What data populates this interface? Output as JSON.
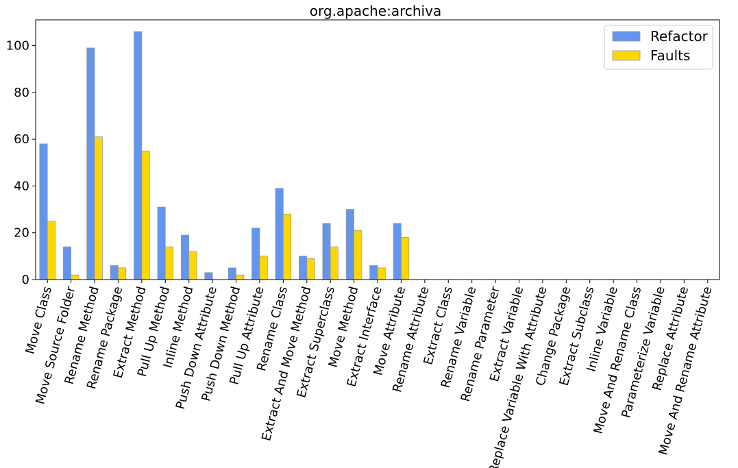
{
  "chart_data": {
    "type": "bar",
    "title": "org.apache:archiva",
    "xlabel": "",
    "ylabel": "",
    "ylim": [
      0,
      111
    ],
    "yticks": [
      0,
      20,
      40,
      60,
      80,
      100
    ],
    "grid": false,
    "legend_position": "top-right",
    "categories": [
      "Move Class",
      "Move Source Folder",
      "Rename Method",
      "Rename Package",
      "Extract Method",
      "Pull Up Method",
      "Inline Method",
      "Push Down Attribute",
      "Push Down Method",
      "Pull Up Attribute",
      "Rename Class",
      "Extract And Move Method",
      "Extract Superclass",
      "Move Method",
      "Extract Interface",
      "Move Attribute",
      "Rename Attribute",
      "Extract Class",
      "Rename Variable",
      "Rename Parameter",
      "Extract Variable",
      "Replace Variable With Attribute",
      "Change Package",
      "Extract Subclass",
      "Inline Variable",
      "Move And Rename Class",
      "Parameterize Variable",
      "Replace Attribute",
      "Move And Rename Attribute"
    ],
    "series": [
      {
        "name": "Refactor",
        "color": "#6495ED",
        "values": [
          58,
          14,
          99,
          6,
          106,
          31,
          19,
          3,
          5,
          22,
          39,
          10,
          24,
          30,
          6,
          24,
          0,
          0,
          0,
          0,
          0,
          0,
          0,
          0,
          0,
          0,
          0,
          0,
          0
        ]
      },
      {
        "name": "Faults",
        "color": "#FFD700",
        "values": [
          25,
          2,
          61,
          5,
          55,
          14,
          12,
          0,
          2,
          10,
          28,
          9,
          14,
          21,
          5,
          18,
          0,
          0,
          0,
          0,
          0,
          0,
          0,
          0,
          0,
          0,
          0,
          0,
          0
        ]
      }
    ]
  }
}
